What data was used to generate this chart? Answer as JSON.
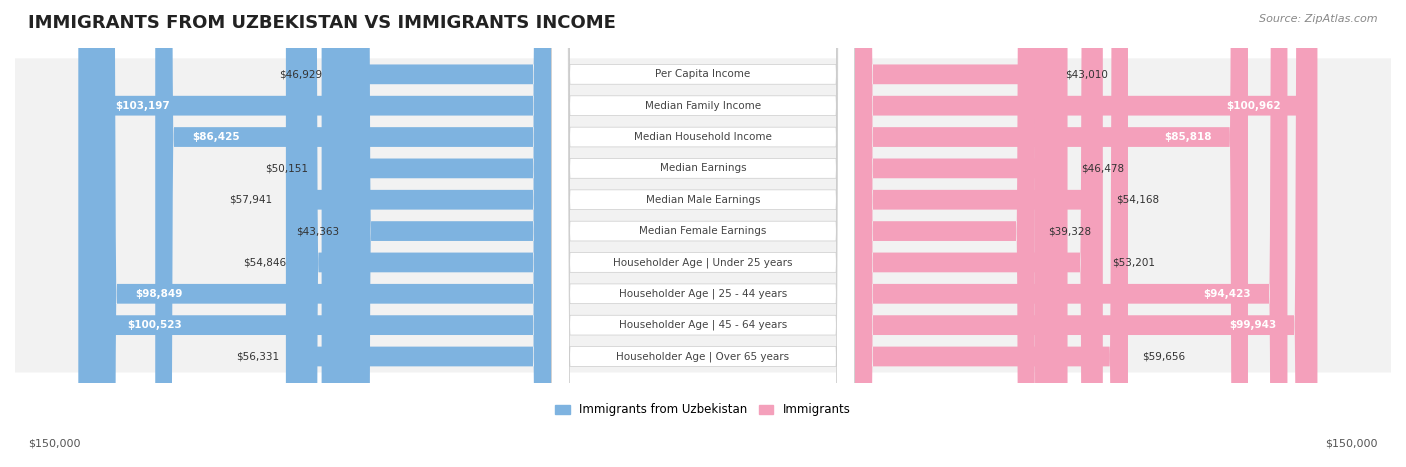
{
  "title": "IMMIGRANTS FROM UZBEKISTAN VS IMMIGRANTS INCOME",
  "source": "Source: ZipAtlas.com",
  "categories": [
    "Per Capita Income",
    "Median Family Income",
    "Median Household Income",
    "Median Earnings",
    "Median Male Earnings",
    "Median Female Earnings",
    "Householder Age | Under 25 years",
    "Householder Age | 25 - 44 years",
    "Householder Age | 45 - 64 years",
    "Householder Age | Over 65 years"
  ],
  "uzbekistan_values": [
    46929,
    103197,
    86425,
    50151,
    57941,
    43363,
    54846,
    98849,
    100523,
    56331
  ],
  "immigrants_values": [
    43010,
    100962,
    85818,
    46478,
    54168,
    39328,
    53201,
    94423,
    99943,
    59656
  ],
  "uzbekistan_labels": [
    "$46,929",
    "$103,197",
    "$86,425",
    "$50,151",
    "$57,941",
    "$43,363",
    "$54,846",
    "$98,849",
    "$100,523",
    "$56,331"
  ],
  "immigrants_labels": [
    "$43,010",
    "$100,962",
    "$85,818",
    "$46,478",
    "$54,168",
    "$39,328",
    "$53,201",
    "$94,423",
    "$99,943",
    "$59,656"
  ],
  "max_val": 150000,
  "uzbekistan_color": "#7EB3E0",
  "uzbekistan_color_dark": "#5B9BD5",
  "immigrants_color": "#F4A0BB",
  "immigrants_color_dark": "#EF6FA0",
  "background_color": "#FFFFFF",
  "row_bg_color": "#F2F2F2",
  "label_fontsize": 8.5,
  "title_fontsize": 13,
  "legend_label_uzbekistan": "Immigrants from Uzbekistan",
  "legend_label_immigrants": "Immigrants",
  "bottom_axis_label_left": "$150,000",
  "bottom_axis_label_right": "$150,000",
  "uzbekistan_label_white": [
    true,
    true,
    true,
    false,
    false,
    false,
    false,
    true,
    true,
    false
  ],
  "immigrants_label_white": [
    false,
    true,
    true,
    false,
    false,
    false,
    false,
    true,
    true,
    false
  ]
}
